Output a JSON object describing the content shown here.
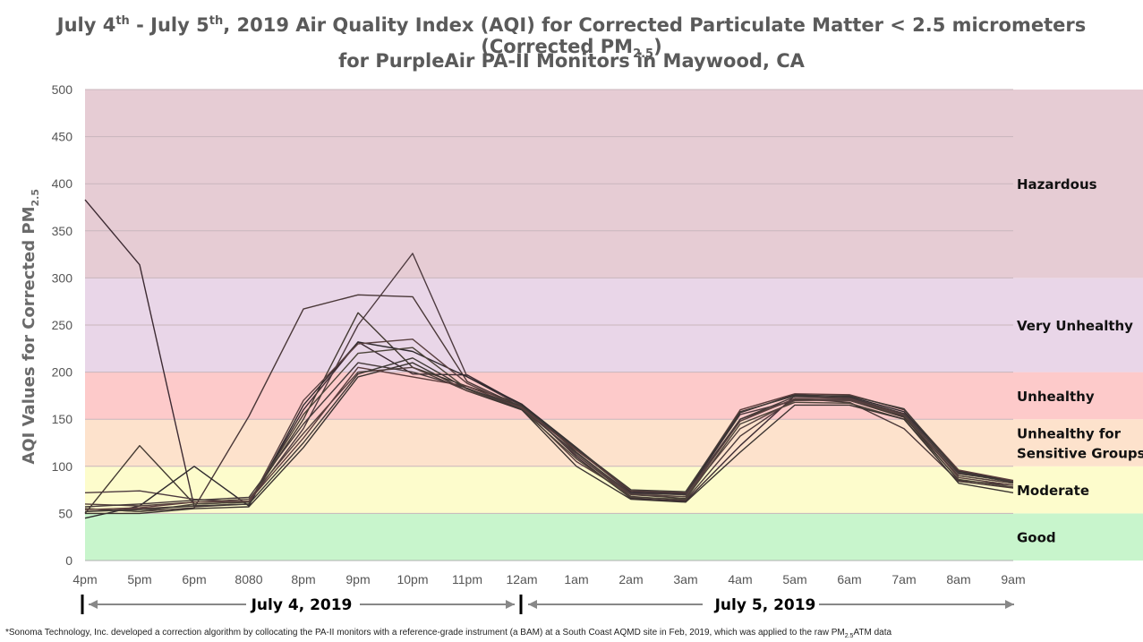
{
  "title": {
    "line1_pre": "July 4",
    "line1_sup1": "th",
    "line1_mid": " - July 5",
    "line1_sup2": "th",
    "line1_post": ", 2019 Air Quality Index (AQI) for Corrected Particulate Matter < 2.5 micrometers (Corrected PM",
    "line1_sub": "2.5",
    "line1_end": ")",
    "line2": "for PurpleAir PA-II Monitors in Maywood, CA"
  },
  "ylabel": {
    "text": "AQI Values for  Corrected PM",
    "sub": "2.5"
  },
  "footnote": {
    "pre": "*Sonoma Technology, Inc. developed a correction algorithm by collocating the PA-II monitors with a reference-grade instrument (a BAM) at a South Coast AQMD site in Feb, 2019, which was applied to the raw PM",
    "sub": "2.5",
    "post": "ATM data"
  },
  "chart_data": {
    "type": "line",
    "categories": [
      "4pm",
      "5pm",
      "6pm",
      "8080",
      "8pm",
      "9pm",
      "10pm",
      "11pm",
      "12am",
      "1am",
      "2am",
      "3am",
      "4am",
      "5am",
      "6am",
      "7am",
      "8am",
      "9am"
    ],
    "ylim": [
      0,
      500
    ],
    "yticks": [
      0,
      50,
      100,
      150,
      200,
      250,
      300,
      350,
      400,
      450,
      500
    ],
    "grid": true,
    "date_labels": [
      "July 4, 2019",
      "July 5, 2019"
    ],
    "bands": [
      {
        "label": "Good",
        "min": 0,
        "max": 50,
        "color": "#c8f5cc"
      },
      {
        "label": "Moderate",
        "min": 50,
        "max": 100,
        "color": "#fdfccc"
      },
      {
        "label": "Unhealthy for\nSensitive Groups",
        "min": 100,
        "max": 150,
        "color": "#fde2cc"
      },
      {
        "label": "Unhealthy",
        "min": 150,
        "max": 200,
        "color": "#fdcaca"
      },
      {
        "label": "Very Unhealthy",
        "min": 200,
        "max": 300,
        "color": "#e9d6e8"
      },
      {
        "label": "Hazardous",
        "min": 300,
        "max": 500,
        "color": "#e6ccd4"
      }
    ],
    "series": [
      {
        "values": [
          383,
          314,
          57,
          60,
          160,
          232,
          198,
          197,
          165,
          110,
          66,
          63,
          122,
          175,
          172,
          153,
          85,
          80
        ]
      },
      {
        "values": [
          55,
          52,
          56,
          153,
          267,
          282,
          280,
          190,
          163,
          112,
          68,
          64,
          132,
          172,
          168,
          140,
          84,
          77
        ]
      },
      {
        "values": [
          50,
          122,
          60,
          62,
          150,
          263,
          205,
          185,
          166,
          115,
          70,
          66,
          150,
          171,
          170,
          152,
          90,
          82
        ]
      },
      {
        "values": [
          72,
          74,
          65,
          62,
          140,
          250,
          326,
          195,
          164,
          118,
          72,
          70,
          155,
          170,
          171,
          156,
          93,
          83
        ]
      },
      {
        "values": [
          45,
          58,
          100,
          58,
          165,
          232,
          222,
          195,
          166,
          120,
          73,
          71,
          157,
          176,
          174,
          158,
          95,
          84
        ]
      },
      {
        "values": [
          52,
          55,
          58,
          60,
          170,
          230,
          235,
          188,
          162,
          105,
          70,
          68,
          148,
          172,
          172,
          155,
          88,
          80
        ]
      },
      {
        "values": [
          55,
          52,
          60,
          62,
          155,
          220,
          226,
          182,
          160,
          108,
          67,
          65,
          145,
          168,
          167,
          150,
          86,
          78
        ]
      },
      {
        "values": [
          50,
          50,
          55,
          57,
          120,
          195,
          210,
          180,
          160,
          100,
          65,
          62,
          115,
          165,
          165,
          150,
          82,
          72
        ]
      },
      {
        "values": [
          60,
          58,
          62,
          65,
          135,
          200,
          205,
          180,
          163,
          112,
          70,
          68,
          140,
          170,
          170,
          154,
          90,
          82
        ]
      },
      {
        "values": [
          57,
          60,
          64,
          67,
          145,
          210,
          200,
          183,
          161,
          114,
          71,
          70,
          150,
          174,
          173,
          156,
          92,
          84
        ]
      },
      {
        "values": [
          54,
          56,
          62,
          63,
          130,
          205,
          195,
          185,
          162,
          117,
          74,
          72,
          160,
          177,
          176,
          160,
          96,
          85
        ]
      },
      {
        "values": [
          52,
          54,
          58,
          60,
          125,
          198,
          215,
          182,
          164,
          119,
          75,
          73,
          158,
          175,
          175,
          161,
          94,
          83
        ]
      }
    ]
  }
}
